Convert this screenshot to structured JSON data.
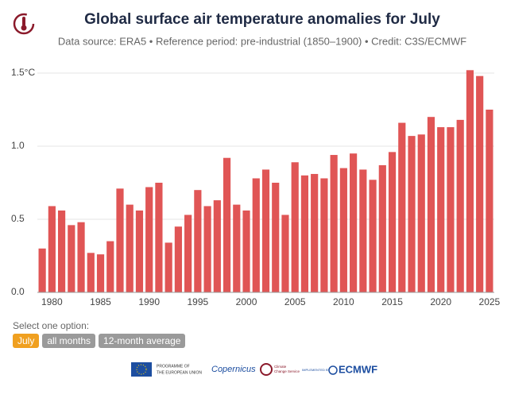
{
  "chart_data": {
    "type": "bar",
    "title": "Global surface air temperature anomalies for July",
    "subtitle": "Data source: ERA5 • Reference period: pre-industrial (1850–1900) • Credit: C3S/ECMWF",
    "x": [
      1979,
      1980,
      1981,
      1982,
      1983,
      1984,
      1985,
      1986,
      1987,
      1988,
      1989,
      1990,
      1991,
      1992,
      1993,
      1994,
      1995,
      1996,
      1997,
      1998,
      1999,
      2000,
      2001,
      2002,
      2003,
      2004,
      2005,
      2006,
      2007,
      2008,
      2009,
      2010,
      2011,
      2012,
      2013,
      2014,
      2015,
      2016,
      2017,
      2018,
      2019,
      2020,
      2021,
      2022,
      2023,
      2024,
      2025
    ],
    "values": [
      0.3,
      0.59,
      0.56,
      0.46,
      0.48,
      0.27,
      0.26,
      0.35,
      0.71,
      0.6,
      0.56,
      0.72,
      0.75,
      0.34,
      0.45,
      0.53,
      0.7,
      0.59,
      0.63,
      0.92,
      0.6,
      0.56,
      0.78,
      0.84,
      0.75,
      0.53,
      0.89,
      0.8,
      0.81,
      0.78,
      0.94,
      0.85,
      0.95,
      0.84,
      0.77,
      0.87,
      0.96,
      1.16,
      1.07,
      1.08,
      1.2,
      1.13,
      1.13,
      1.18,
      1.52,
      1.48,
      1.25
    ],
    "color": "#e05555",
    "xlim": [
      1978.5,
      2025.5
    ],
    "xticks": [
      1980,
      1985,
      1990,
      1995,
      2000,
      2005,
      2010,
      2015,
      2020,
      2025
    ],
    "ylim": [
      0,
      1.5
    ],
    "yticks": [
      {
        "value": 0,
        "label": "0.0"
      },
      0.5,
      {
        "value": 1,
        "label": "1.0"
      },
      {
        "value": 1.5,
        "label": "1.5°C"
      }
    ],
    "grid": true
  },
  "controls": {
    "prompt": "Select one option:",
    "options": [
      "July",
      "all months",
      "12-month average"
    ],
    "selected": 0
  },
  "footer": {
    "eu": [
      "PROGRAMME OF",
      "THE EUROPEAN UNION"
    ],
    "copernicus": "Copernicus",
    "c3s": [
      "Climate",
      "Change Service"
    ],
    "implemented": "IMPLEMENTED BY",
    "ecmwf": "ECMWF"
  }
}
